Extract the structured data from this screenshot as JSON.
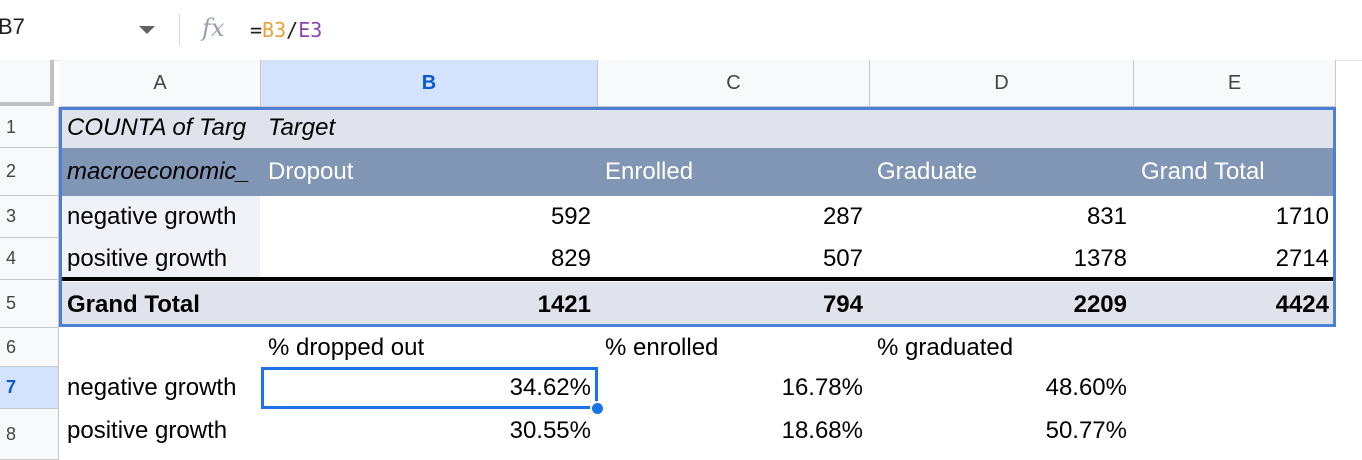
{
  "name_box": "B7",
  "formula": {
    "prefix": "=",
    "ref1": "B3",
    "sep": "/",
    "ref2": "E3",
    "ref1_color": "#e8a33d",
    "ref2_color": "#8e44ad"
  },
  "columns": [
    "A",
    "B",
    "C",
    "D",
    "E"
  ],
  "rows": [
    "1",
    "2",
    "3",
    "4",
    "5",
    "6",
    "7",
    "8"
  ],
  "pivot": {
    "title": "COUNTA of Targ",
    "target_label": "Target",
    "row_field": "macroeconomic_",
    "headers": [
      "Dropout",
      "Enrolled",
      "Graduate",
      "Grand Total"
    ],
    "data": [
      {
        "label": "negative growth",
        "values": [
          "592",
          "287",
          "831",
          "1710"
        ]
      },
      {
        "label": "positive growth",
        "values": [
          "829",
          "507",
          "1378",
          "2714"
        ]
      }
    ],
    "total": {
      "label": "Grand Total",
      "values": [
        "1421",
        "794",
        "2209",
        "4424"
      ]
    }
  },
  "pct": {
    "headers": [
      "% dropped out",
      "% enrolled",
      "% graduated"
    ],
    "data": [
      {
        "label": "negative growth",
        "values": [
          "34.62%",
          "16.78%",
          "48.60%"
        ]
      },
      {
        "label": "positive growth",
        "values": [
          "30.55%",
          "18.68%",
          "50.77%"
        ]
      }
    ]
  },
  "colors": {
    "pivot_header": "#8195b4",
    "pivot_light": "#e0e3eb",
    "selection": "#1a73e8"
  }
}
